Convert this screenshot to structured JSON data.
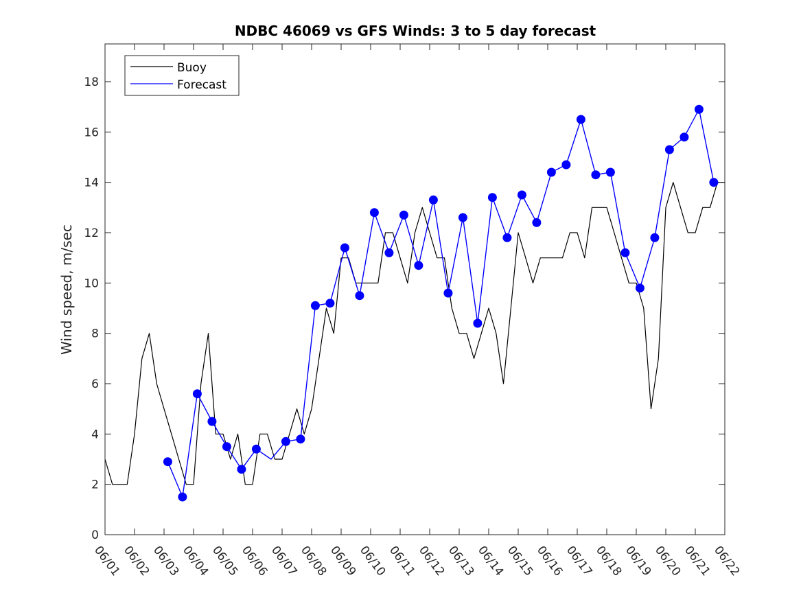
{
  "chart_data": {
    "type": "line",
    "title": "NDBC 46069 vs GFS Winds: 3 to 5 day forecast",
    "xlabel": "",
    "ylabel": "Wind speed, m/sec",
    "xlim": [
      "06/01",
      "06/22"
    ],
    "ylim": [
      0,
      19.5
    ],
    "x_ticks": [
      "06/01",
      "06/02",
      "06/03",
      "06/04",
      "06/05",
      "06/06",
      "06/07",
      "06/08",
      "06/09",
      "06/10",
      "06/11",
      "06/12",
      "06/13",
      "06/14",
      "06/15",
      "06/16",
      "06/17",
      "06/18",
      "06/19",
      "06/20",
      "06/21",
      "06/22"
    ],
    "y_ticks": [
      0,
      2,
      4,
      6,
      8,
      10,
      12,
      14,
      16,
      18
    ],
    "grid": false,
    "legend": {
      "position": "top-left",
      "entries": [
        {
          "label": "Buoy",
          "color": "#000000"
        },
        {
          "label": "Forecast",
          "color": "#0000ff"
        }
      ]
    },
    "series": [
      {
        "name": "Buoy",
        "color": "#000000",
        "x": [
          "06/01",
          "06/01 06:00",
          "06/01 12:00",
          "06/01 18:00",
          "06/02",
          "06/02 06:00",
          "06/02 12:00",
          "06/02 18:00",
          "06/03",
          "06/03 06:00",
          "06/03 12:00",
          "06/03 18:00",
          "06/04",
          "06/04 06:00",
          "06/04 12:00",
          "06/04 18:00",
          "06/05",
          "06/05 06:00",
          "06/05 12:00",
          "06/05 18:00",
          "06/06",
          "06/06 06:00",
          "06/06 12:00",
          "06/06 18:00",
          "06/07",
          "06/07 06:00",
          "06/07 12:00",
          "06/07 18:00",
          "06/08",
          "06/08 06:00",
          "06/08 12:00",
          "06/08 18:00",
          "06/09",
          "06/09 06:00",
          "06/09 12:00",
          "06/09 18:00",
          "06/10",
          "06/10 06:00",
          "06/10 12:00",
          "06/10 18:00",
          "06/11",
          "06/11 06:00",
          "06/11 12:00",
          "06/11 18:00",
          "06/12",
          "06/12 06:00",
          "06/12 12:00",
          "06/12 18:00",
          "06/13",
          "06/13 06:00",
          "06/13 12:00",
          "06/13 18:00",
          "06/14",
          "06/14 06:00",
          "06/14 12:00",
          "06/14 18:00",
          "06/15",
          "06/15 06:00",
          "06/15 12:00",
          "06/15 18:00",
          "06/16",
          "06/16 06:00",
          "06/16 12:00",
          "06/16 18:00",
          "06/17",
          "06/17 06:00",
          "06/17 12:00",
          "06/17 18:00",
          "06/18",
          "06/18 06:00",
          "06/18 12:00",
          "06/18 18:00",
          "06/19",
          "06/19 06:00",
          "06/19 12:00",
          "06/19 18:00",
          "06/20",
          "06/20 06:00",
          "06/20 12:00",
          "06/20 18:00",
          "06/21",
          "06/21 06:00",
          "06/21 12:00",
          "06/21 18:00",
          "06/22"
        ],
        "y": [
          3,
          2,
          2,
          2,
          4,
          7,
          8,
          6,
          5,
          4,
          3,
          2,
          2,
          6,
          8,
          4,
          4,
          3,
          4,
          2,
          2,
          4,
          4,
          3,
          3,
          4,
          5,
          4,
          5,
          7,
          9,
          8,
          11,
          11,
          10,
          10,
          10,
          10,
          12,
          12,
          11,
          10,
          12,
          13,
          12,
          11,
          11,
          9,
          8,
          8,
          7,
          8,
          9,
          8,
          6,
          9,
          12,
          11,
          10,
          11,
          11,
          11,
          11,
          12,
          12,
          11,
          13,
          13,
          13,
          12,
          11,
          10,
          10,
          9,
          5,
          7,
          13,
          14,
          13,
          12,
          12,
          13,
          13,
          14,
          14
        ]
      },
      {
        "name": "Forecast",
        "color": "#0000ff",
        "x": [
          "06/03 03:00",
          "06/03 15:00",
          "06/04 03:00",
          "06/04 15:00",
          "06/05 03:00",
          "06/05 15:00",
          "06/06 03:00",
          "06/06 15:00",
          "06/07 03:00",
          "06/07 15:00",
          "06/08 03:00",
          "06/08 15:00",
          "06/09 03:00",
          "06/09 15:00",
          "06/10 03:00",
          "06/10 15:00",
          "06/11 03:00",
          "06/11 15:00",
          "06/12 03:00",
          "06/12 15:00",
          "06/13 03:00",
          "06/13 15:00",
          "06/14 03:00",
          "06/14 15:00",
          "06/15 03:00",
          "06/15 15:00",
          "06/16 03:00",
          "06/16 15:00",
          "06/17 03:00",
          "06/17 15:00",
          "06/18 03:00",
          "06/18 15:00",
          "06/19 03:00",
          "06/19 15:00",
          "06/20 03:00",
          "06/20 15:00",
          "06/21 03:00",
          "06/21 15:00"
        ],
        "y": [
          2.9,
          1.5,
          5.6,
          4.5,
          3.5,
          2.6,
          3.4,
          3.0,
          3.7,
          3.8,
          9.1,
          9.2,
          11.4,
          9.5,
          12.8,
          11.2,
          12.7,
          10.7,
          13.3,
          9.6,
          12.6,
          8.4,
          13.4,
          11.8,
          13.5,
          12.4,
          14.4,
          14.7,
          16.5,
          14.3,
          14.4,
          11.2,
          9.8,
          11.8,
          15.3,
          15.8,
          16.9,
          14.0
        ]
      }
    ],
    "markers": {
      "name": "Forecast",
      "x": [
        "06/03 03:00",
        "06/03 15:00",
        "06/04 03:00",
        "06/04 15:00",
        "06/05 03:00",
        "06/05 15:00",
        "06/06 03:00",
        "06/07 03:00",
        "06/07 15:00",
        "06/08 03:00",
        "06/08 15:00",
        "06/09 03:00",
        "06/09 15:00",
        "06/10 03:00",
        "06/10 15:00",
        "06/11 03:00",
        "06/11 15:00",
        "06/12 03:00",
        "06/12 15:00",
        "06/13 03:00",
        "06/13 15:00",
        "06/14 03:00",
        "06/14 15:00",
        "06/15 03:00",
        "06/15 15:00",
        "06/16 03:00",
        "06/16 15:00",
        "06/17 03:00",
        "06/17 15:00",
        "06/18 03:00",
        "06/18 15:00",
        "06/19 03:00",
        "06/19 15:00",
        "06/20 03:00",
        "06/20 15:00",
        "06/21 03:00",
        "06/21 15:00"
      ],
      "y": [
        2.9,
        1.5,
        5.6,
        4.5,
        3.5,
        2.6,
        3.4,
        3.7,
        3.8,
        9.1,
        9.2,
        11.4,
        9.5,
        12.8,
        11.2,
        12.7,
        10.7,
        13.3,
        9.6,
        12.6,
        8.4,
        13.4,
        11.8,
        13.5,
        12.4,
        14.4,
        14.7,
        16.5,
        14.3,
        14.4,
        11.2,
        9.8,
        11.8,
        15.3,
        15.8,
        16.9,
        14.0
      ]
    }
  }
}
